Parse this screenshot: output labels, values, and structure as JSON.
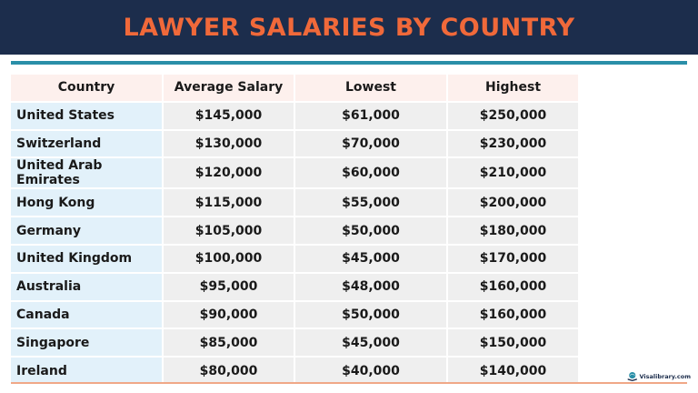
{
  "title": "LAWYER SALARIES BY COUNTRY",
  "chart_data": {
    "type": "table",
    "columns": [
      "Country",
      "Average Salary",
      "Lowest",
      "Highest"
    ],
    "rows": [
      [
        "United States",
        "$145,000",
        "$61,000",
        "$250,000"
      ],
      [
        "Switzerland",
        "$130,000",
        "$70,000",
        "$230,000"
      ],
      [
        "United Arab Emirates",
        "$120,000",
        "$60,000",
        "$210,000"
      ],
      [
        "Hong Kong",
        "$115,000",
        "$55,000",
        "$200,000"
      ],
      [
        "Germany",
        "$105,000",
        "$50,000",
        "$180,000"
      ],
      [
        "United Kingdom",
        "$100,000",
        "$45,000",
        "$170,000"
      ],
      [
        "Australia",
        "$95,000",
        "$48,000",
        "$160,000"
      ],
      [
        "Canada",
        "$90,000",
        "$50,000",
        "$160,000"
      ],
      [
        "Singapore",
        "$85,000",
        "$45,000",
        "$150,000"
      ],
      [
        "Ireland",
        "$80,000",
        "$40,000",
        "$140,000"
      ]
    ]
  },
  "logo": {
    "text": "Visalibrary.com",
    "icon": "globe-book-icon"
  },
  "colors": {
    "banner": "#1c2d4c",
    "title": "#f0693a",
    "header_cells": "#fdf0ed",
    "country_cells": "#e2f1fa",
    "value_cells": "#efefef",
    "teal_rule": "#2a8fa8",
    "orange_rule": "#f0a887"
  }
}
